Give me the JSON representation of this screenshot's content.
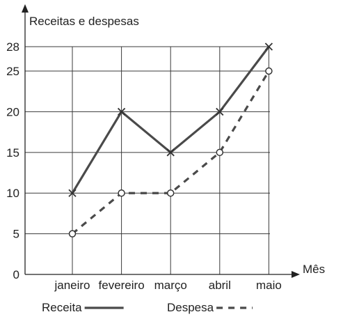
{
  "chart_data": {
    "type": "line",
    "title": "Receitas e despesas",
    "xlabel": "Mês",
    "ylabel": "",
    "categories": [
      "janeiro",
      "fevereiro",
      "março",
      "abril",
      "maio"
    ],
    "yticks": [
      0,
      5,
      10,
      15,
      20,
      25,
      28
    ],
    "ylim": [
      0,
      28
    ],
    "grid": true,
    "legend_position": "bottom",
    "series": [
      {
        "name": "Receita",
        "values": [
          10,
          20,
          15,
          20,
          28
        ],
        "marker": "x",
        "style": "solid",
        "color": "#4a4a4a"
      },
      {
        "name": "Despesa",
        "values": [
          5,
          10,
          10,
          15,
          25
        ],
        "marker": "o",
        "style": "dashed",
        "color": "#4a4a4a"
      }
    ]
  }
}
